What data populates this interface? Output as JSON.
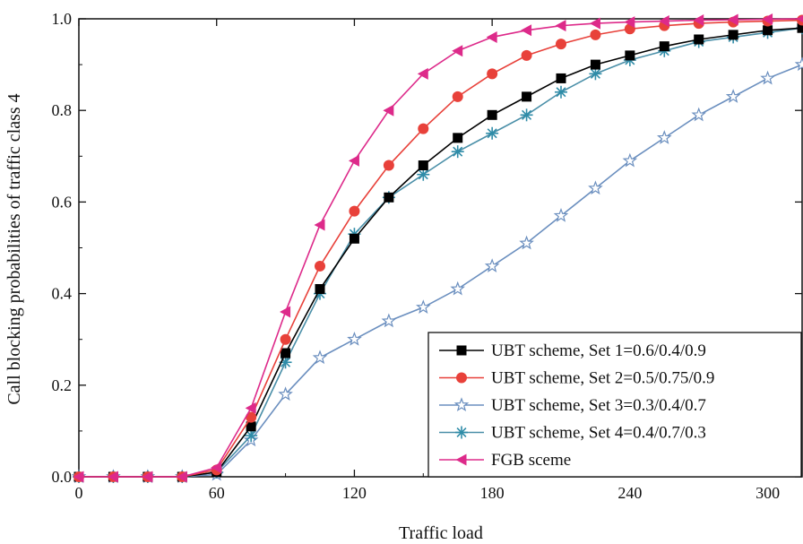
{
  "chart_data": {
    "type": "line",
    "title": "",
    "xlabel": "Traffic load",
    "ylabel": "Call blocking probabilities of traffic class 4",
    "xlim": [
      0,
      315
    ],
    "ylim": [
      0,
      1.0
    ],
    "xticks": [
      0,
      60,
      120,
      180,
      240,
      300
    ],
    "yticks": [
      0.0,
      0.2,
      0.4,
      0.6,
      0.8,
      1.0
    ],
    "xtick_labels": [
      "0",
      "60",
      "120",
      "180",
      "240",
      "300"
    ],
    "ytick_labels": [
      "0.0",
      "0.2",
      "0.4",
      "0.6",
      "0.8",
      "1.0"
    ],
    "grid": false,
    "legend_position": "bottom-right",
    "x": [
      0,
      15,
      30,
      45,
      60,
      75,
      90,
      105,
      120,
      135,
      150,
      165,
      180,
      195,
      210,
      225,
      240,
      255,
      270,
      285,
      300,
      315
    ],
    "series": [
      {
        "name": "UBT scheme, Set 1=0.6/0.4/0.9",
        "marker": "square",
        "line_color": "#000000",
        "marker_color": "#000000",
        "values": [
          0,
          0,
          0,
          0,
          0.01,
          0.11,
          0.27,
          0.41,
          0.52,
          0.61,
          0.68,
          0.74,
          0.79,
          0.83,
          0.87,
          0.9,
          0.92,
          0.94,
          0.955,
          0.965,
          0.975,
          0.98
        ]
      },
      {
        "name": "UBT scheme, Set 2=0.5/0.75/0.9",
        "marker": "circle",
        "line_color": "#e8413a",
        "marker_color": "#e8413a",
        "values": [
          0,
          0,
          0,
          0,
          0.015,
          0.13,
          0.3,
          0.46,
          0.58,
          0.68,
          0.76,
          0.83,
          0.88,
          0.92,
          0.945,
          0.965,
          0.978,
          0.985,
          0.99,
          0.993,
          0.995,
          0.997
        ]
      },
      {
        "name": "UBT scheme, Set 3=0.3/0.4/0.7",
        "marker": "star",
        "line_color": "#6b8fbf",
        "marker_color": "#6b8fbf",
        "values": [
          0,
          0,
          0,
          0,
          0.005,
          0.08,
          0.18,
          0.26,
          0.3,
          0.34,
          0.37,
          0.41,
          0.46,
          0.51,
          0.57,
          0.63,
          0.69,
          0.74,
          0.79,
          0.83,
          0.87,
          0.9
        ]
      },
      {
        "name": "UBT scheme, Set 4=0.4/0.7/0.3",
        "marker": "asterisk",
        "line_color": "#4a8fa8",
        "marker_color": "#2f8ca8",
        "values": [
          0,
          0,
          0,
          0,
          0.01,
          0.09,
          0.25,
          0.4,
          0.53,
          0.61,
          0.66,
          0.71,
          0.75,
          0.79,
          0.84,
          0.88,
          0.91,
          0.93,
          0.95,
          0.96,
          0.97,
          0.98
        ]
      },
      {
        "name": "FGB sceme",
        "marker": "triangle-left",
        "line_color": "#dd2a8a",
        "marker_color": "#dd2a8a",
        "values": [
          0,
          0,
          0,
          0,
          0.02,
          0.15,
          0.36,
          0.55,
          0.69,
          0.8,
          0.88,
          0.93,
          0.96,
          0.975,
          0.985,
          0.99,
          0.993,
          0.995,
          0.997,
          0.998,
          0.999,
          1.0
        ]
      }
    ]
  }
}
